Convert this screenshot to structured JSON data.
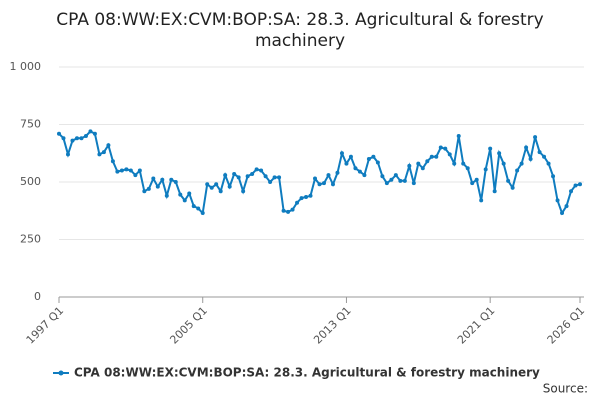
{
  "chart_data": {
    "type": "line",
    "title": "CPA 08:WW:EX:CVM:BOP:SA: 28.3. Agricultural & forestry machinery",
    "source": "Source:",
    "categories": [
      "1997 Q1",
      null,
      null,
      null,
      null,
      null,
      null,
      null,
      null,
      null,
      null,
      null,
      null,
      null,
      null,
      null,
      null,
      null,
      null,
      null,
      null,
      null,
      null,
      null,
      null,
      null,
      null,
      null,
      null,
      null,
      null,
      null,
      "2005 Q1",
      null,
      null,
      null,
      null,
      null,
      null,
      null,
      null,
      null,
      null,
      null,
      null,
      null,
      null,
      null,
      null,
      null,
      null,
      null,
      null,
      null,
      null,
      null,
      null,
      null,
      null,
      null,
      null,
      null,
      null,
      null,
      "2013 Q1",
      null,
      null,
      null,
      null,
      null,
      null,
      null,
      null,
      null,
      null,
      null,
      null,
      null,
      null,
      null,
      null,
      null,
      null,
      null,
      null,
      null,
      null,
      null,
      null,
      null,
      null,
      null,
      null,
      null,
      null,
      null,
      "2021 Q1",
      null,
      null,
      null,
      null,
      null,
      null,
      null,
      null,
      null,
      null,
      null,
      null,
      null,
      null,
      null,
      null,
      null,
      null,
      null,
      "2026 Q1"
    ],
    "series": [
      {
        "name": "CPA 08:WW:EX:CVM:BOP:SA: 28.3. Agricultural & forestry machinery",
        "color": "#0f7cbf",
        "values": [
          710,
          690,
          620,
          680,
          690,
          690,
          700,
          720,
          710,
          620,
          630,
          660,
          590,
          545,
          550,
          555,
          550,
          530,
          550,
          460,
          470,
          515,
          480,
          510,
          440,
          510,
          500,
          445,
          420,
          450,
          395,
          385,
          365,
          490,
          475,
          490,
          460,
          530,
          480,
          535,
          520,
          460,
          525,
          535,
          555,
          550,
          525,
          500,
          520,
          520,
          375,
          370,
          380,
          410,
          430,
          435,
          440,
          515,
          490,
          495,
          530,
          490,
          540,
          625,
          580,
          610,
          560,
          545,
          530,
          600,
          610,
          585,
          525,
          495,
          510,
          530,
          505,
          505,
          570,
          495,
          580,
          560,
          590,
          610,
          610,
          650,
          645,
          620,
          580,
          700,
          580,
          560,
          495,
          510,
          420,
          555,
          645,
          460,
          625,
          580,
          505,
          475,
          550,
          580,
          650,
          600,
          695,
          630,
          610,
          580,
          525,
          420,
          365,
          395,
          460,
          485,
          490
        ]
      }
    ],
    "ylim": [
      0,
      1000
    ],
    "yticks": [
      0,
      250,
      500,
      750,
      {
        "value": 1000,
        "label": "1 000"
      }
    ],
    "grid": true
  }
}
